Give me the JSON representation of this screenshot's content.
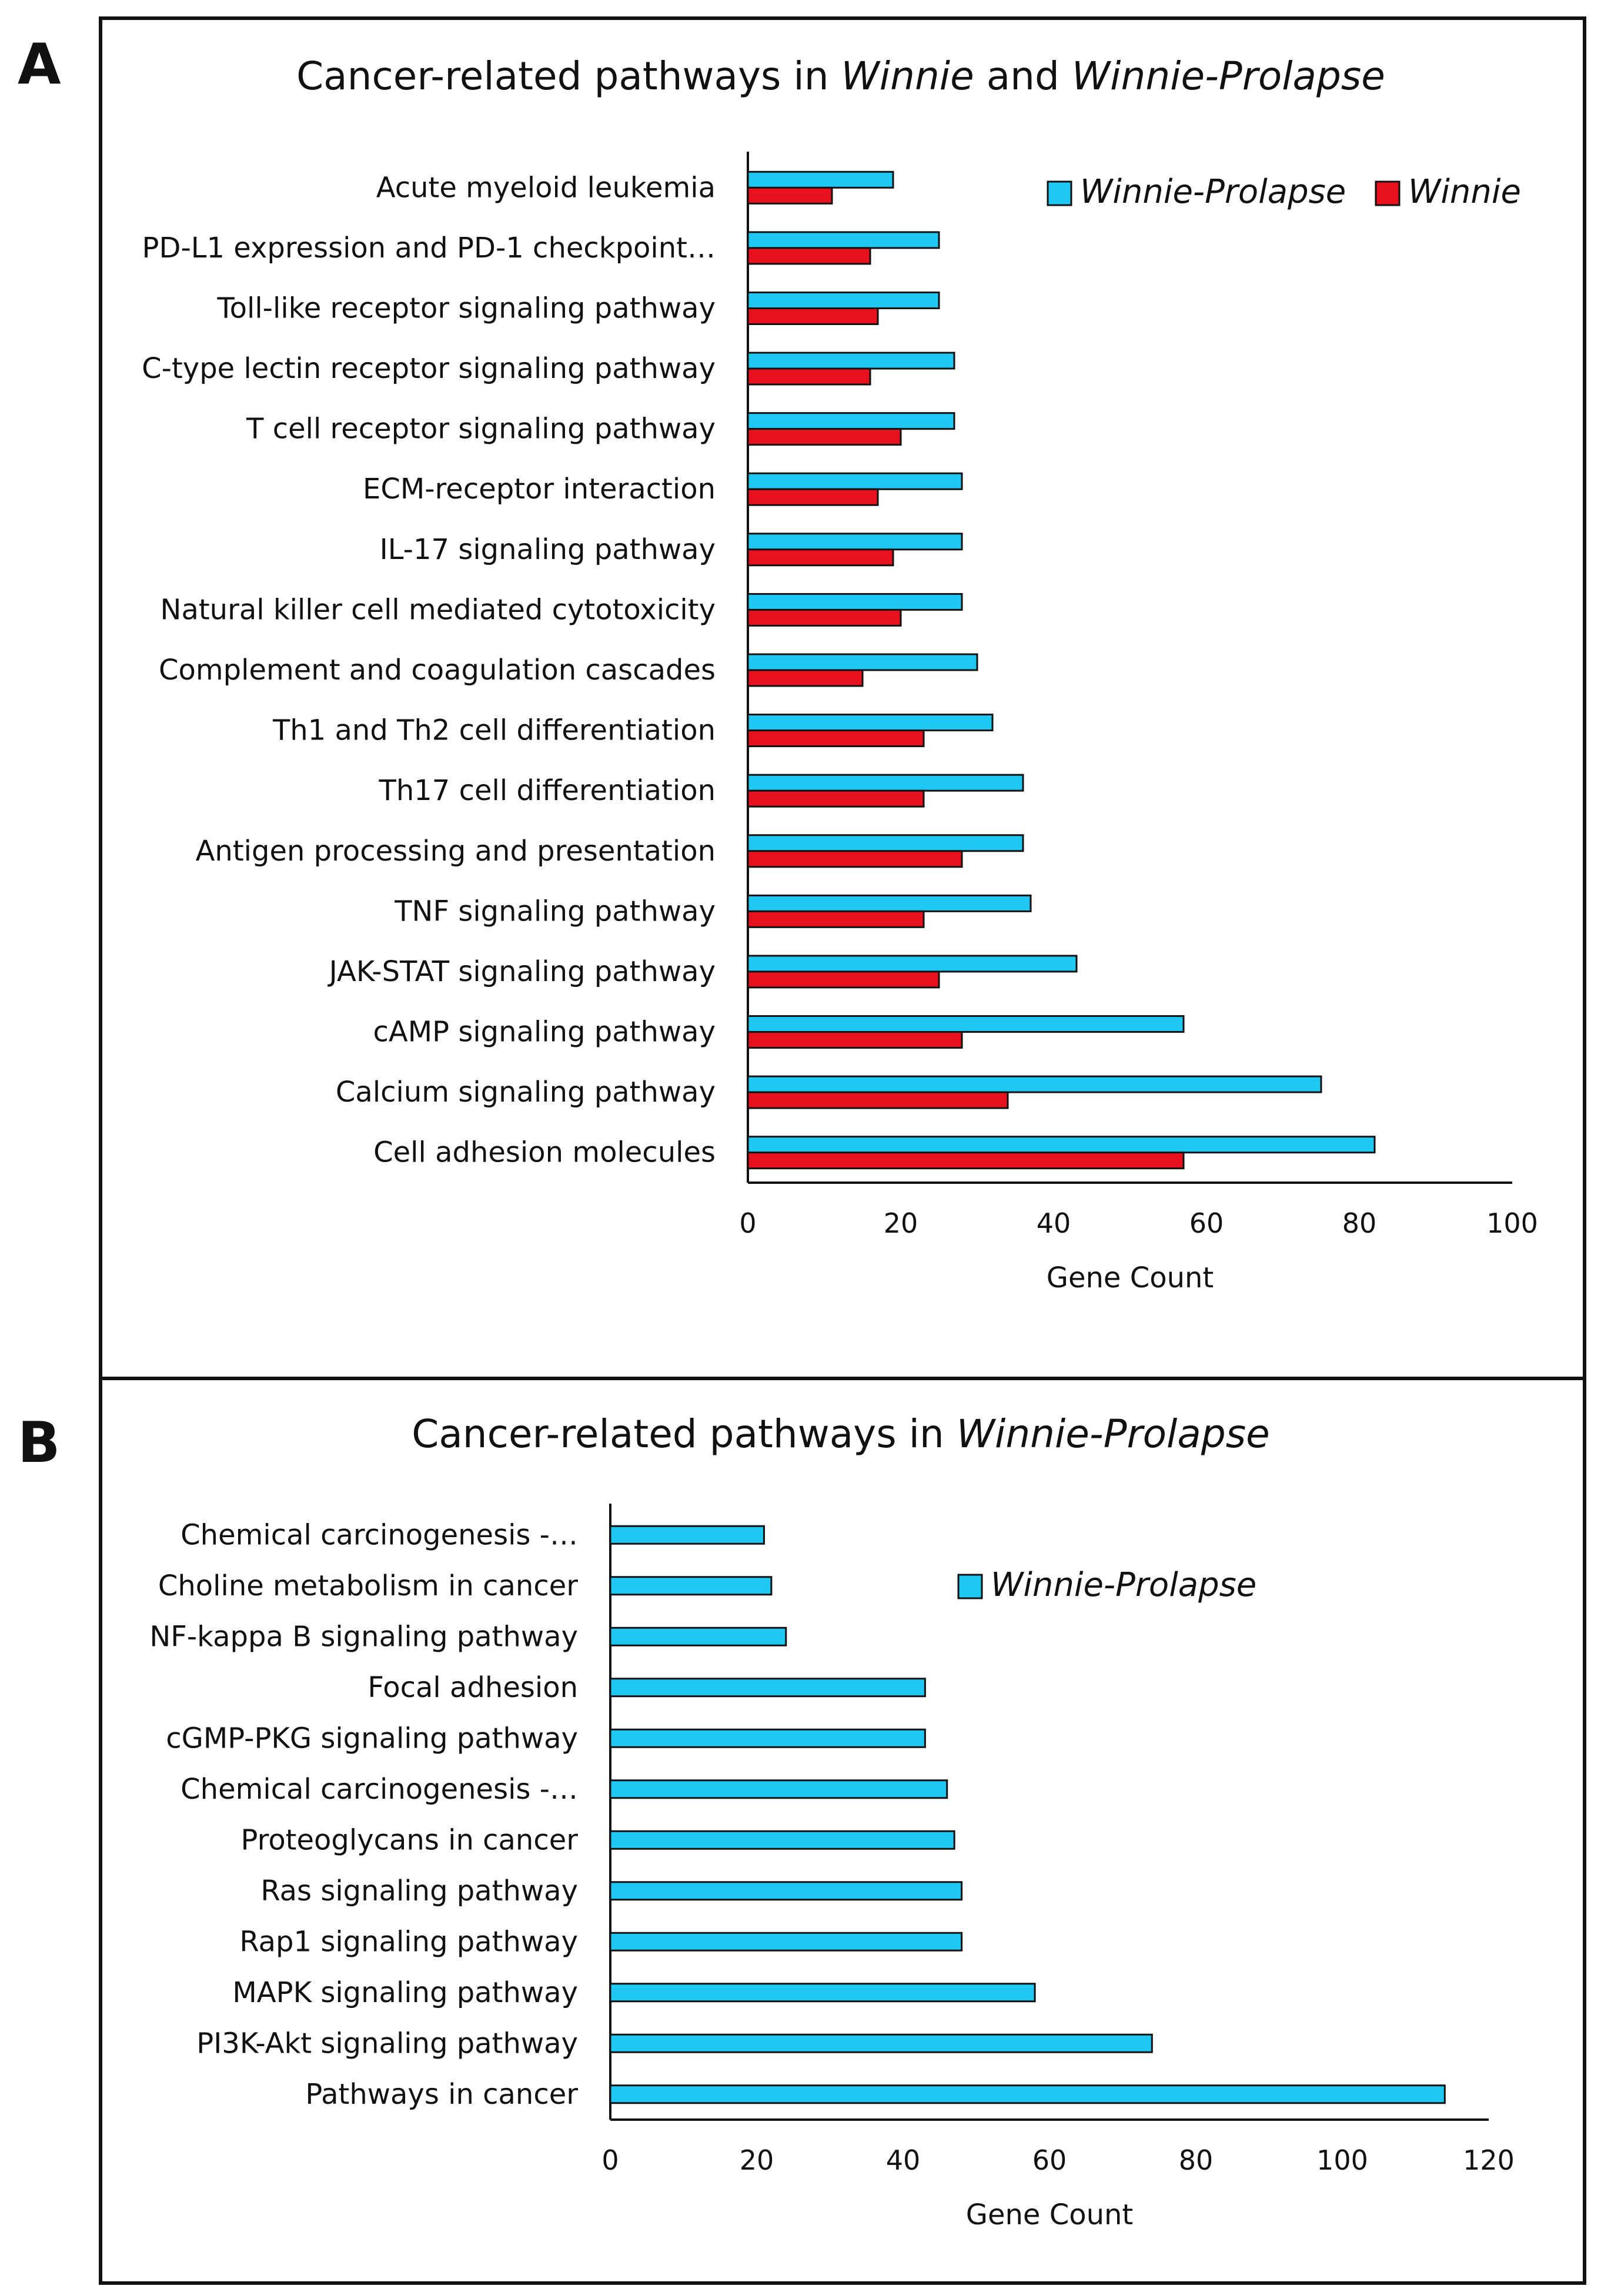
{
  "colors": {
    "winnie_prolapse": "#1ec8f2",
    "winnie": "#e8121e",
    "axis": "#111111"
  },
  "panels": {
    "a": {
      "letter": "A",
      "title_pre": "Cancer-related pathways in ",
      "title_i1": "Winnie",
      "title_mid": " and ",
      "title_i2": "Winnie-Prolapse"
    },
    "b": {
      "letter": "B",
      "title_pre": "Cancer-related pathways in ",
      "title_i1": "Winnie-Prolapse"
    }
  },
  "chart_data": [
    {
      "type": "bar",
      "orientation": "horizontal",
      "title": "Cancer-related pathways in Winnie and Winnie-Prolapse",
      "xlabel": "Gene Count",
      "xlim": [
        0,
        100
      ],
      "xticks": [
        0,
        20,
        40,
        60,
        80,
        100
      ],
      "grid": false,
      "legend_position": "top-right",
      "categories": [
        "Acute myeloid leukemia",
        "PD-L1 expression and PD-1 checkpoint…",
        "Toll-like receptor signaling pathway",
        "C-type lectin receptor signaling pathway",
        "T cell receptor signaling pathway",
        "ECM-receptor interaction",
        "IL-17 signaling pathway",
        "Natural killer cell mediated cytotoxicity",
        "Complement and coagulation cascades",
        "Th1 and Th2 cell differentiation",
        "Th17 cell differentiation",
        "Antigen processing and presentation",
        "TNF signaling pathway",
        "JAK-STAT signaling pathway",
        "cAMP signaling pathway",
        "Calcium signaling pathway",
        "Cell adhesion molecules"
      ],
      "series": [
        {
          "name": "Winnie-Prolapse",
          "color": "#1ec8f2",
          "values": [
            19,
            25,
            25,
            27,
            27,
            28,
            28,
            28,
            30,
            32,
            36,
            36,
            37,
            43,
            57,
            75,
            82
          ]
        },
        {
          "name": "Winnie",
          "color": "#e8121e",
          "values": [
            11,
            16,
            17,
            16,
            20,
            17,
            19,
            20,
            15,
            23,
            23,
            28,
            23,
            25,
            28,
            34,
            57
          ]
        }
      ]
    },
    {
      "type": "bar",
      "orientation": "horizontal",
      "title": "Cancer-related pathways in Winnie-Prolapse",
      "xlabel": "Gene Count",
      "xlim": [
        0,
        120
      ],
      "xticks": [
        0,
        20,
        40,
        60,
        80,
        100,
        120
      ],
      "grid": false,
      "legend_position": "top-right",
      "categories": [
        "Chemical carcinogenesis -…",
        "Choline metabolism in cancer",
        "NF-kappa B signaling pathway",
        "Focal adhesion",
        "cGMP-PKG signaling pathway",
        "Chemical carcinogenesis -…",
        "Proteoglycans in cancer",
        "Ras signaling pathway",
        "Rap1 signaling pathway",
        "MAPK signaling pathway",
        "PI3K-Akt signaling pathway",
        "Pathways in cancer"
      ],
      "series": [
        {
          "name": "Winnie-Prolapse",
          "color": "#1ec8f2",
          "values": [
            21,
            22,
            24,
            43,
            43,
            46,
            47,
            48,
            48,
            58,
            74,
            114
          ]
        }
      ]
    }
  ]
}
